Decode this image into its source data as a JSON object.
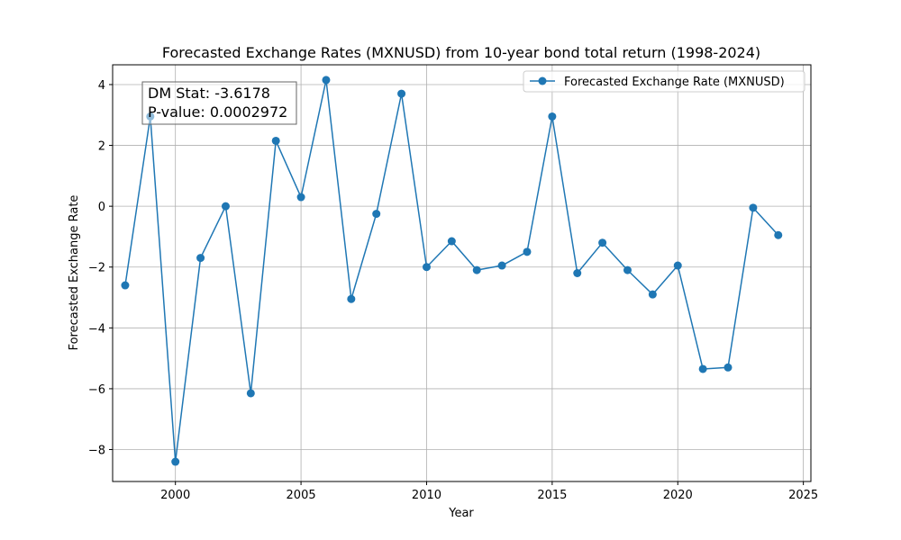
{
  "chart_data": {
    "type": "line",
    "title": "Forecasted Exchange Rates (MXNUSD) from 10-year bond total return (1998-2024)",
    "xlabel": "Year",
    "ylabel": "Forecasted Exchange Rate",
    "xlim": [
      1997.5,
      2025.3
    ],
    "ylim": [
      -9.05,
      4.65
    ],
    "xticks": [
      2000,
      2005,
      2010,
      2015,
      2020,
      2025
    ],
    "yticks": [
      -8,
      -6,
      -4,
      -2,
      0,
      2,
      4
    ],
    "grid": true,
    "legend_position": "top-right",
    "series": [
      {
        "name": "Forecasted Exchange Rate (MXNUSD)",
        "color": "#1f77b4",
        "marker": "circle",
        "x": [
          1998,
          1999,
          2000,
          2001,
          2002,
          2003,
          2004,
          2005,
          2006,
          2007,
          2008,
          2009,
          2010,
          2011,
          2012,
          2013,
          2014,
          2015,
          2016,
          2017,
          2018,
          2019,
          2020,
          2021,
          2022,
          2023,
          2024
        ],
        "y": [
          -2.6,
          2.95,
          -8.4,
          -1.7,
          0.0,
          -6.15,
          2.15,
          0.3,
          4.15,
          -3.05,
          -0.25,
          3.7,
          -2.0,
          -1.15,
          -2.1,
          -1.95,
          -1.5,
          2.95,
          -2.2,
          -1.2,
          -2.1,
          -2.9,
          -1.95,
          -5.35,
          -5.3,
          -0.05,
          -0.95
        ]
      }
    ],
    "annotation": {
      "line1": "DM Stat: -3.6178",
      "line2": "P-value: 0.0002972"
    }
  }
}
